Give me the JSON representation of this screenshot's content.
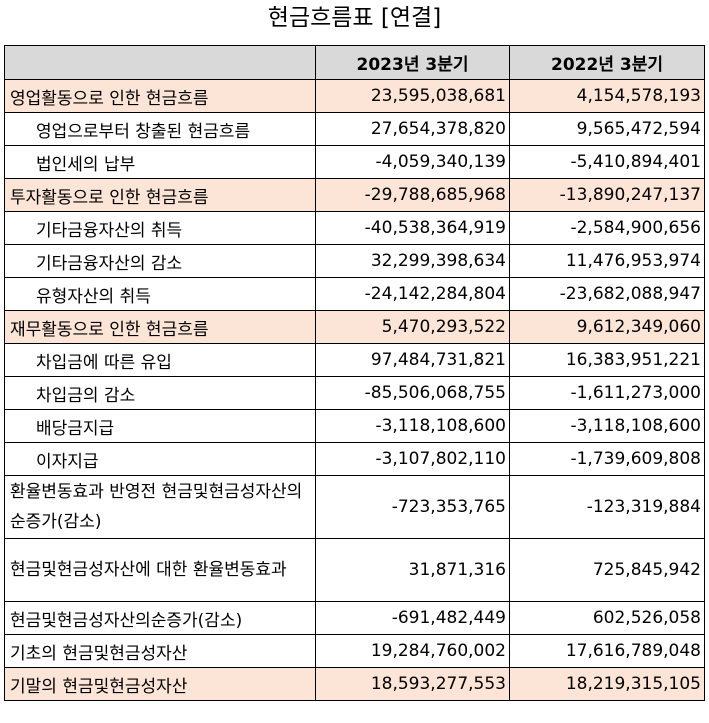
{
  "title": "현금흐름표 [연결]",
  "columns": {
    "label": "",
    "y2023": "2023년 3분기",
    "y2022": "2022년 3분기"
  },
  "rows": [
    {
      "label": "영업활동으로 인한 현금흐름",
      "v2023": "23,595,038,681",
      "v2022": "4,154,578,193"
    },
    {
      "label": "영업으로부터 창출된 현금흐름",
      "v2023": "27,654,378,820",
      "v2022": "9,565,472,594"
    },
    {
      "label": "법인세의 납부",
      "v2023": "-4,059,340,139",
      "v2022": "-5,410,894,401"
    },
    {
      "label": "투자활동으로 인한 현금흐름",
      "v2023": "-29,788,685,968",
      "v2022": "-13,890,247,137"
    },
    {
      "label": "기타금융자산의 취득",
      "v2023": "-40,538,364,919",
      "v2022": "-2,584,900,656"
    },
    {
      "label": "기타금융자산의 감소",
      "v2023": "32,299,398,634",
      "v2022": "11,476,953,974"
    },
    {
      "label": "유형자산의 취득",
      "v2023": "-24,142,284,804",
      "v2022": "-23,682,088,947"
    },
    {
      "label": "재무활동으로 인한 현금흐름",
      "v2023": "5,470,293,522",
      "v2022": "9,612,349,060"
    },
    {
      "label": "차입금에 따른 유입",
      "v2023": "97,484,731,821",
      "v2022": "16,383,951,221"
    },
    {
      "label": "차입금의 감소",
      "v2023": "-85,506,068,755",
      "v2022": "-1,611,273,000"
    },
    {
      "label": "배당금지급",
      "v2023": "-3,118,108,600",
      "v2022": "-3,118,108,600"
    },
    {
      "label": "이자지급",
      "v2023": "-3,107,802,110",
      "v2022": "-1,739,609,808"
    },
    {
      "label": "환율변동효과 반영전 현금및현금성자산의 순증가(감소)",
      "v2023": "-723,353,765",
      "v2022": "-123,319,884"
    },
    {
      "label": "현금및현금성자산에 대한 환율변동효과",
      "v2023": "31,871,316",
      "v2022": "725,845,942"
    },
    {
      "label": "현금및현금성자산의순증가(감소)",
      "v2023": "-691,482,449",
      "v2022": "602,526,058"
    },
    {
      "label": "기초의 현금및현금성자산",
      "v2023": "19,284,760,002",
      "v2022": "17,616,789,048"
    },
    {
      "label": "기말의 현금및현금성자산",
      "v2023": "18,593,277,553",
      "v2022": "18,219,315,105"
    }
  ]
}
